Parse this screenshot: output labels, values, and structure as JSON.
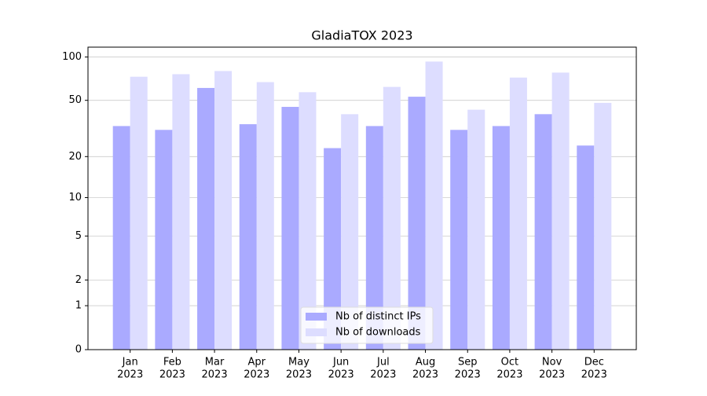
{
  "chart_data": {
    "type": "bar",
    "title": "GladiaTOX 2023",
    "categories": [
      [
        "Jan",
        "2023"
      ],
      [
        "Feb",
        "2023"
      ],
      [
        "Mar",
        "2023"
      ],
      [
        "Apr",
        "2023"
      ],
      [
        "May",
        "2023"
      ],
      [
        "Jun",
        "2023"
      ],
      [
        "Jul",
        "2023"
      ],
      [
        "Aug",
        "2023"
      ],
      [
        "Sep",
        "2023"
      ],
      [
        "Oct",
        "2023"
      ],
      [
        "Nov",
        "2023"
      ],
      [
        "Dec",
        "2023"
      ]
    ],
    "series": [
      {
        "name": "Nb of distinct IPs",
        "color": "#aaaaff",
        "values": [
          33,
          31,
          61,
          34,
          45,
          23,
          33,
          53,
          31,
          33,
          40,
          24
        ]
      },
      {
        "name": "Nb of downloads",
        "color": "#ddddff",
        "values": [
          73,
          76,
          80,
          67,
          57,
          40,
          62,
          93,
          43,
          72,
          78,
          48
        ]
      }
    ],
    "yscale": "log1p",
    "ylim": [
      0,
      117
    ],
    "yticks": [
      0,
      1,
      2,
      5,
      10,
      20,
      50,
      100
    ],
    "grid": true,
    "legend": "lower center"
  }
}
